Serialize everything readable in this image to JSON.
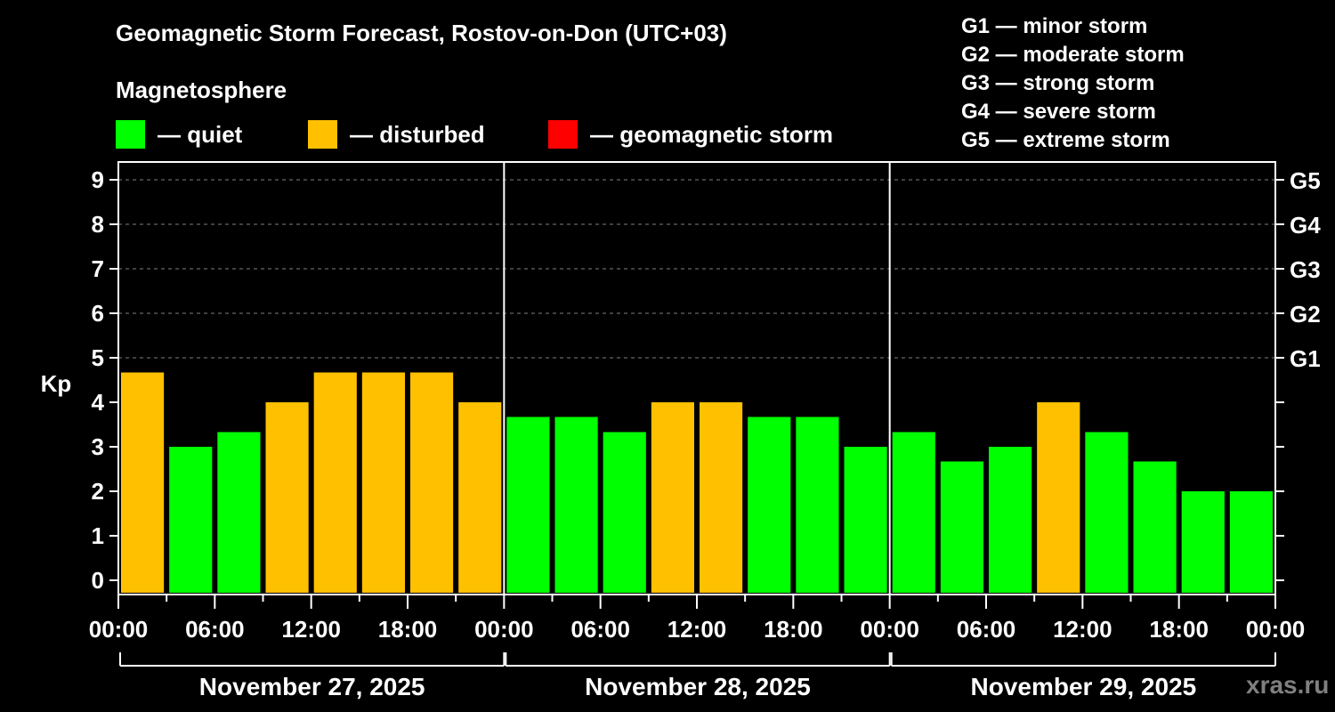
{
  "header": {
    "title": "Geomagnetic Storm Forecast, Rostov-on-Don (UTC+03)",
    "subtitle": "Magnetosphere"
  },
  "legend": [
    {
      "label": "— quiet",
      "color": "#00FF00"
    },
    {
      "label": "— disturbed",
      "color": "#FFC000"
    },
    {
      "label": "— geomagnetic storm",
      "color": "#FF0000"
    }
  ],
  "g_scale_legend": [
    "G1 — minor storm",
    "G2 — moderate storm",
    "G3 — strong storm",
    "G4 — severe storm",
    "G5 — extreme storm"
  ],
  "watermark": "xras.ru",
  "colors": {
    "background": "#000000",
    "axis": "#FFFFFF",
    "grid": "#808080",
    "quiet": "#00FF00",
    "disturbed": "#FFC000",
    "storm": "#FF0000"
  },
  "chart_data": {
    "type": "bar",
    "title": "Geomagnetic Storm Forecast, Rostov-on-Don (UTC+03)",
    "ylabel": "Kp",
    "xlabel": "",
    "ylim": [
      0,
      9
    ],
    "yticks": [
      0,
      1,
      2,
      3,
      4,
      5,
      6,
      7,
      8,
      9
    ],
    "right_axis_labels": [
      {
        "kp": 5,
        "label": "G1"
      },
      {
        "kp": 6,
        "label": "G2"
      },
      {
        "kp": 7,
        "label": "G3"
      },
      {
        "kp": 8,
        "label": "G4"
      },
      {
        "kp": 9,
        "label": "G5"
      }
    ],
    "grid": {
      "y_dashed_from": 5,
      "y_dashed_to": 9
    },
    "xtick_labels": [
      "00:00",
      "06:00",
      "12:00",
      "18:00"
    ],
    "days": [
      {
        "date": "November 27, 2025",
        "values": [
          4.67,
          3,
          3.33,
          4,
          4.67,
          4.67,
          4.67,
          4
        ],
        "status": [
          "disturbed",
          "quiet",
          "quiet",
          "disturbed",
          "disturbed",
          "disturbed",
          "disturbed",
          "disturbed"
        ]
      },
      {
        "date": "November 28, 2025",
        "values": [
          3.67,
          3.67,
          3.33,
          4,
          4,
          3.67,
          3.67,
          3
        ],
        "status": [
          "quiet",
          "quiet",
          "quiet",
          "disturbed",
          "disturbed",
          "quiet",
          "quiet",
          "quiet"
        ]
      },
      {
        "date": "November 29, 2025",
        "values": [
          3.33,
          2.67,
          3,
          4,
          3.33,
          2.67,
          2,
          2
        ],
        "status": [
          "quiet",
          "quiet",
          "quiet",
          "disturbed",
          "quiet",
          "quiet",
          "quiet",
          "quiet"
        ]
      }
    ],
    "interval_hours": 3,
    "legend_position": "top"
  }
}
